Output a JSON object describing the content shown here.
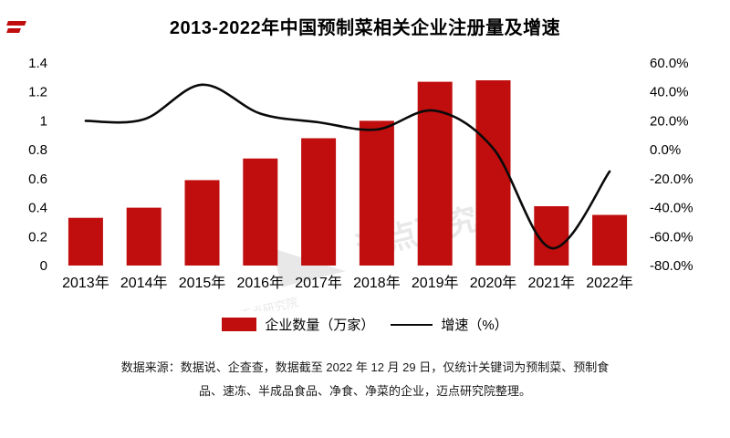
{
  "page": {
    "title": "2013-2022年中国预制菜相关企业注册量及增速",
    "source_lines": [
      "数据来源：数据说、企查查，数据截至 2022 年 12 月 29 日，仅统计关键词为预制菜、预制食",
      "品、速冻、半成品食品、净食、净菜的企业，迈点研究院整理。"
    ]
  },
  "legend": {
    "bar_label": "企业数量（万家）",
    "line_label": "增速（%）"
  },
  "watermark": "迈点研究院",
  "colors": {
    "bar": "#C00D0D",
    "line": "#0a0a0a",
    "axis_text": "#000000",
    "watermark": "#8f8f8f"
  },
  "chart_data": {
    "type": "bar",
    "subtype": "bar+line combo",
    "title": "2013-2022年中国预制菜相关企业注册量及增速",
    "categories": [
      "2013年",
      "2014年",
      "2015年",
      "2016年",
      "2017年",
      "2018年",
      "2019年",
      "2020年",
      "2021年",
      "2022年"
    ],
    "series": [
      {
        "name": "企业数量（万家）",
        "type": "bar",
        "axis": "left",
        "values": [
          0.33,
          0.4,
          0.59,
          0.74,
          0.88,
          1.0,
          1.27,
          1.28,
          0.41,
          0.35
        ]
      },
      {
        "name": "增速（%）",
        "type": "line",
        "axis": "right",
        "values": [
          20,
          21,
          45,
          25,
          19,
          14,
          27,
          1,
          -68,
          -15
        ]
      }
    ],
    "left_axis": {
      "min": 0,
      "max": 1.4,
      "tick_labels": [
        "0",
        "0.2",
        "0.4",
        "0.6",
        "0.8",
        "1",
        "1.2",
        "1.4"
      ]
    },
    "right_axis": {
      "min": -80,
      "max": 60,
      "tick_labels": [
        "60.0%",
        "40.0%",
        "20.0%",
        "0.0%",
        "-20.0%",
        "-40.0%",
        "-60.0%",
        "-80.0%"
      ]
    },
    "grid": false,
    "legend_position": "bottom"
  }
}
